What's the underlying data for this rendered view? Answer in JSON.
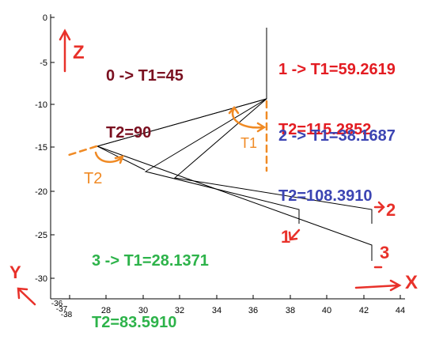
{
  "axes": {
    "z_ticks": [
      "0",
      "-5",
      "-10",
      "-15",
      "-20",
      "-25",
      "-30"
    ],
    "x_ticks": [
      "28",
      "30",
      "32",
      "34",
      "36",
      "38",
      "40",
      "42",
      "44"
    ],
    "y_ticks": [
      "-38",
      "-37",
      "-36"
    ]
  },
  "annotations": {
    "pose0": {
      "line1": "0 -> T1=45",
      "line2": "T2=90",
      "color": "#7a1020"
    },
    "pose1": {
      "line1": "1 -> T1=59.2619",
      "line2": "T2=115.2852",
      "color": "#e31c22"
    },
    "pose2": {
      "line1": "2 -> T1=38.1687",
      "line2": "T2=108.3910",
      "color": "#3c45b3"
    },
    "pose3": {
      "line1": "3 -> T1=28.1371",
      "line2": "T2=83.5910",
      "color": "#2db34a"
    }
  },
  "handwritten": {
    "z": "Z",
    "y": "Y",
    "x": "X",
    "t1": "T1",
    "t2": "T2",
    "n1": "1",
    "n2": "2",
    "n3": "3",
    "red": "#e8312a",
    "orange": "#f08a24"
  }
}
